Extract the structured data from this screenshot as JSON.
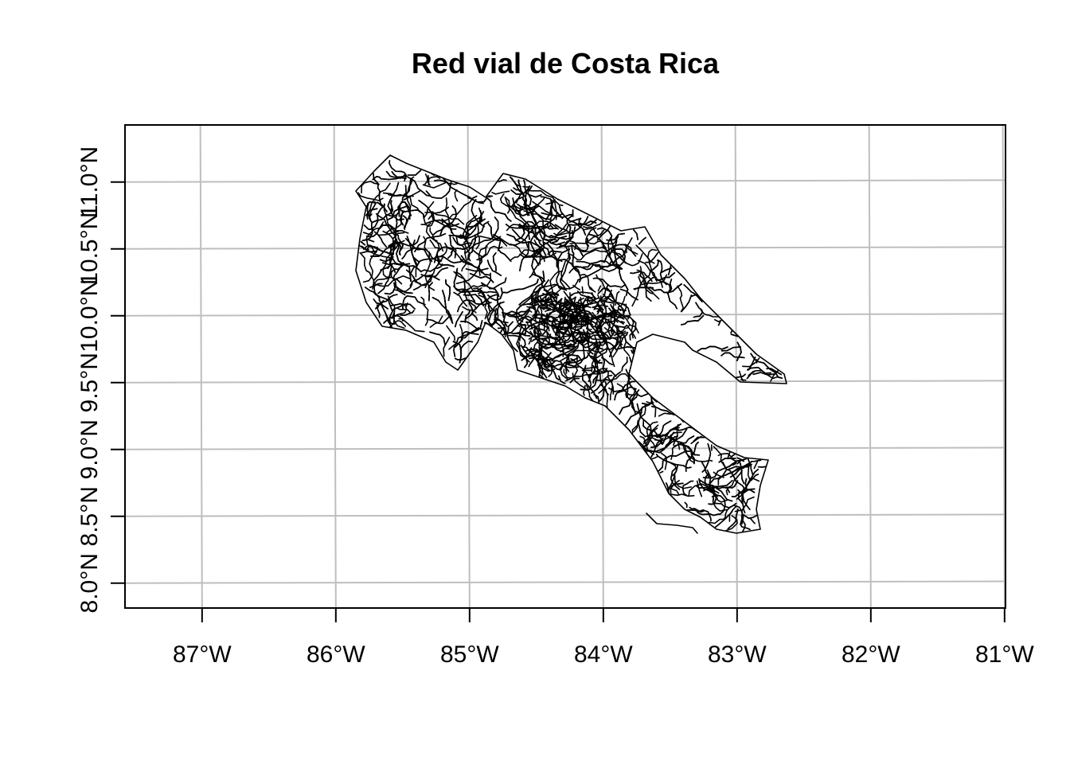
{
  "title": "Red vial de Costa Rica",
  "map": {
    "x_ticks": [
      {
        "lon": -87.0,
        "label": "87°W"
      },
      {
        "lon": -86.0,
        "label": "86°W"
      },
      {
        "lon": -85.0,
        "label": "85°W"
      },
      {
        "lon": -84.0,
        "label": "84°W"
      },
      {
        "lon": -83.0,
        "label": "83°W"
      },
      {
        "lon": -82.0,
        "label": "82°W"
      },
      {
        "lon": -81.0,
        "label": "81°W"
      }
    ],
    "y_ticks": [
      {
        "lat": 8.0,
        "label": "8.0°N"
      },
      {
        "lat": 8.5,
        "label": "8.5°N"
      },
      {
        "lat": 9.0,
        "label": "9.0°N"
      },
      {
        "lat": 9.5,
        "label": "9.5°N"
      },
      {
        "lat": 10.0,
        "label": "10.0°N"
      },
      {
        "lat": 10.5,
        "label": "10.5°N"
      },
      {
        "lat": 11.0,
        "label": "11.0°N"
      }
    ],
    "lon_range": [
      -87.6,
      -81.0
    ],
    "lat_range": [
      7.8,
      11.4
    ],
    "grid": true,
    "line_color": "#000000",
    "grid_color": "#bebebe",
    "features": "road network of Costa Rica"
  }
}
